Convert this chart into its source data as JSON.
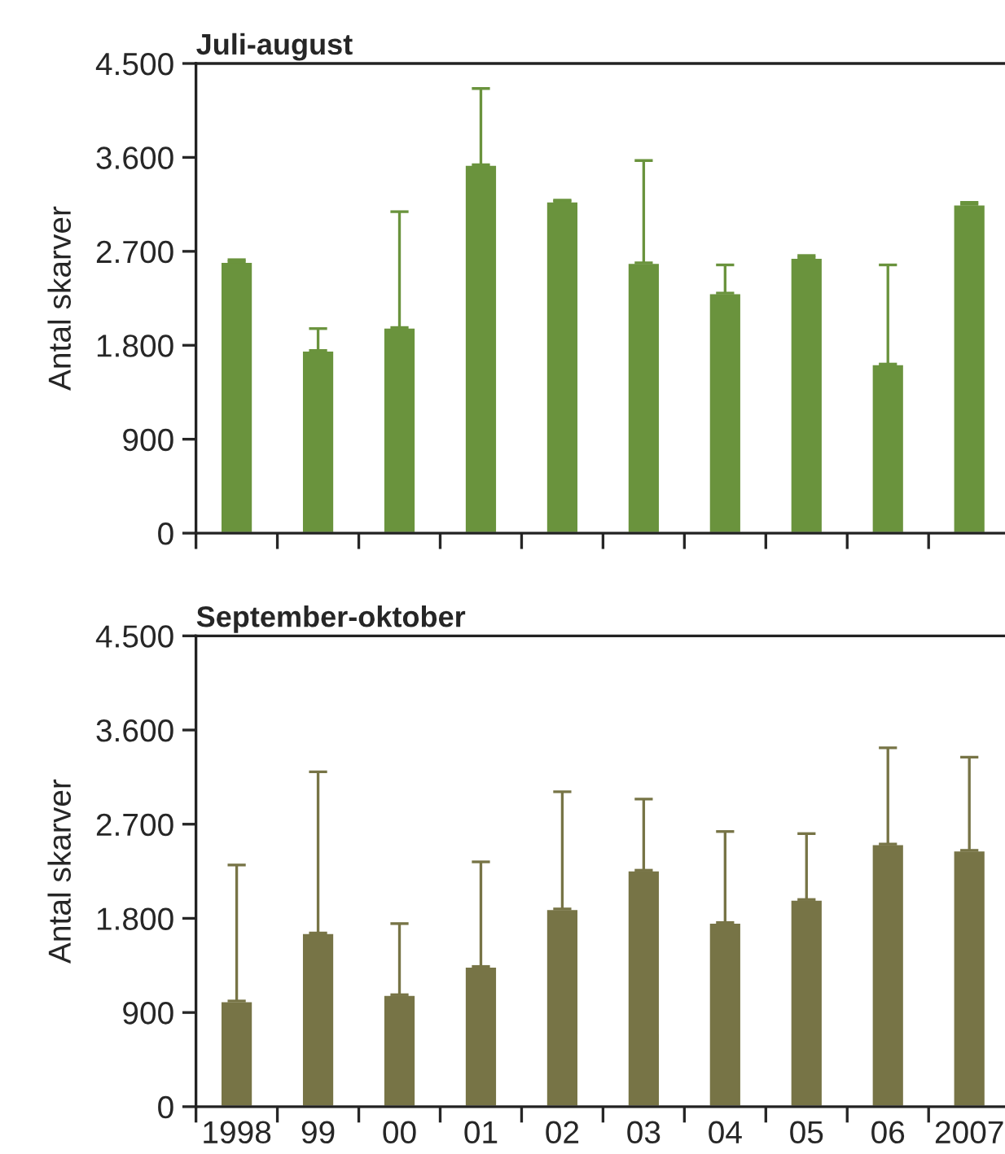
{
  "chart_data": [
    {
      "type": "bar",
      "title": "Juli-august",
      "ylabel": "Antal skarver",
      "categories": [
        "1998",
        "99",
        "00",
        "01",
        "02",
        "03",
        "04",
        "05",
        "06",
        "2007"
      ],
      "color": "#6a933d",
      "values": [
        2600,
        1750,
        1970,
        3530,
        3180,
        2590,
        2300,
        2640,
        1620,
        3150
      ],
      "errors": [
        [
          2600,
          2620
        ],
        [
          1750,
          1960
        ],
        [
          1970,
          3080
        ],
        [
          3530,
          4260
        ],
        [
          3180,
          3190
        ],
        [
          2590,
          3570
        ],
        [
          2300,
          2570
        ],
        [
          2640,
          2660
        ],
        [
          1620,
          2570
        ],
        [
          3150,
          3170
        ]
      ],
      "ylim": [
        0,
        4500
      ],
      "yticks": [
        0,
        {
          "value": 900,
          "label": "900"
        },
        {
          "value": 1800,
          "label": "1.800"
        },
        {
          "value": 2700,
          "label": "2.700"
        },
        {
          "value": 3600,
          "label": "3.600"
        },
        {
          "value": 4500,
          "label": "4.500"
        }
      ],
      "tick_labels": "y",
      "grid": false,
      "legend": false
    },
    {
      "type": "bar",
      "title": "September-oktober",
      "ylabel": "Antal skarver",
      "categories": [
        "1998",
        "99",
        "00",
        "01",
        "02",
        "03",
        "04",
        "05",
        "06",
        "2007"
      ],
      "color": "#777446",
      "values": [
        1010,
        1660,
        1070,
        1340,
        1890,
        2260,
        1760,
        1980,
        2510,
        2450
      ],
      "errors": [
        [
          1010,
          2310
        ],
        [
          1660,
          3200
        ],
        [
          1070,
          1750
        ],
        [
          1340,
          2340
        ],
        [
          1890,
          3010
        ],
        [
          2260,
          2940
        ],
        [
          1760,
          2630
        ],
        [
          1980,
          2610
        ],
        [
          2510,
          3430
        ],
        [
          2450,
          3340
        ]
      ],
      "ylim": [
        0,
        4500
      ],
      "yticks": [
        0,
        {
          "value": 900,
          "label": "900"
        },
        {
          "value": 1800,
          "label": "1.800"
        },
        {
          "value": 2700,
          "label": "2.700"
        },
        {
          "value": 3600,
          "label": "3.600"
        },
        {
          "value": 4500,
          "label": "4.500"
        }
      ],
      "grid": false,
      "legend": false
    }
  ]
}
